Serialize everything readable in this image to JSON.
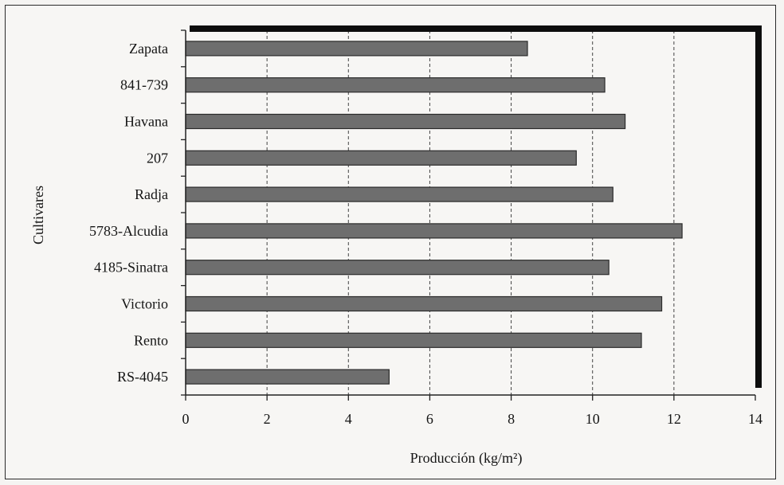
{
  "chart_data": {
    "type": "bar",
    "orientation": "horizontal",
    "title": "",
    "xlabel": "Producción (kg/m²)",
    "ylabel": "Cultivares",
    "categories": [
      "Zapata",
      "841-739",
      "Havana",
      "207",
      "Radja",
      "5783-Alcudia",
      "4185-Sinatra",
      "Victorio",
      "Rento",
      "RS-4045"
    ],
    "values": [
      8.4,
      10.3,
      10.8,
      9.6,
      10.5,
      12.2,
      10.4,
      11.7,
      11.2,
      5.0
    ],
    "xlim": [
      0,
      14
    ],
    "xticks": [
      "0",
      "2",
      "4",
      "6",
      "8",
      "10",
      "12",
      "14"
    ],
    "grid": "vertical dashed",
    "bar_color": "#6e6e6e",
    "legend": "none"
  }
}
